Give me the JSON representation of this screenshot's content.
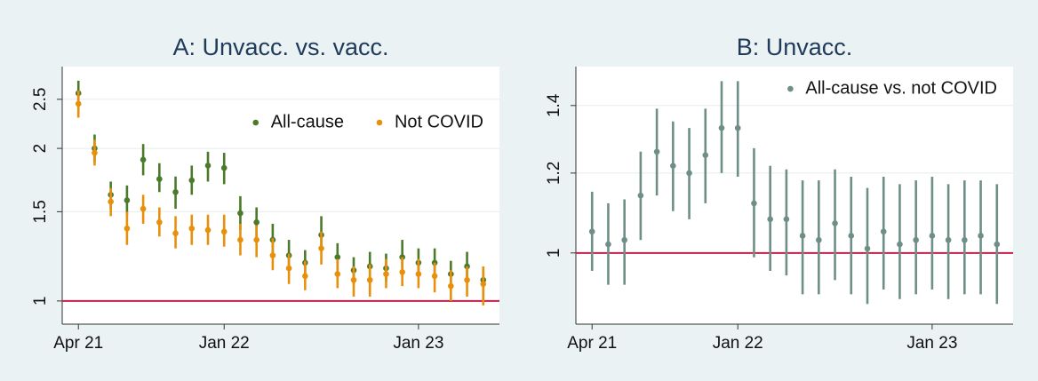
{
  "chart_data": [
    {
      "type": "errorbar",
      "title": "A: Unvacc. vs. vacc.",
      "log_y": true,
      "grid": true,
      "legend": "upper right",
      "x": [
        "2021-04",
        "2021-05",
        "2021-06",
        "2021-07",
        "2021-08",
        "2021-09",
        "2021-10",
        "2021-11",
        "2021-12",
        "2022-01",
        "2022-02",
        "2022-03",
        "2022-04",
        "2022-05",
        "2022-06",
        "2022-07",
        "2022-08",
        "2022-09",
        "2022-10",
        "2022-11",
        "2022-12",
        "2023-01",
        "2023-02",
        "2023-03",
        "2023-04",
        "2023-05"
      ],
      "xlim": [
        "2021-03",
        "2023-06"
      ],
      "xticks": [
        {
          "value": "2021-04",
          "label": "Apr 21"
        },
        {
          "value": "2022-01",
          "label": "Jan 22"
        },
        {
          "value": "2023-01",
          "label": "Jan 23"
        }
      ],
      "ylim": [
        0.9,
        2.9
      ],
      "yticks": [
        1,
        1.5,
        2,
        2.5
      ],
      "hline": {
        "value": 1,
        "color": "#c41e4a"
      },
      "series": [
        {
          "name": "All-cause",
          "color": "#4b7a2b",
          "values": [
            2.57,
            2.0,
            1.62,
            1.58,
            1.9,
            1.74,
            1.64,
            1.73,
            1.85,
            1.83,
            1.49,
            1.43,
            1.32,
            1.23,
            1.19,
            1.35,
            1.22,
            1.15,
            1.17,
            1.16,
            1.22,
            1.19,
            1.19,
            1.13,
            1.17,
            1.1
          ],
          "lower": [
            2.42,
            1.88,
            1.52,
            1.48,
            1.77,
            1.64,
            1.52,
            1.62,
            1.72,
            1.7,
            1.38,
            1.33,
            1.23,
            1.15,
            1.12,
            1.26,
            1.15,
            1.08,
            1.09,
            1.09,
            1.16,
            1.12,
            1.12,
            1.06,
            1.09,
            1.02
          ],
          "upper": [
            2.72,
            2.13,
            1.72,
            1.69,
            2.04,
            1.87,
            1.76,
            1.85,
            1.97,
            1.96,
            1.61,
            1.53,
            1.42,
            1.32,
            1.26,
            1.47,
            1.3,
            1.22,
            1.25,
            1.24,
            1.32,
            1.27,
            1.27,
            1.2,
            1.25,
            1.17
          ]
        },
        {
          "name": "Not COVID",
          "color": "#e8900c",
          "values": [
            2.45,
            1.96,
            1.57,
            1.39,
            1.52,
            1.43,
            1.36,
            1.39,
            1.38,
            1.37,
            1.32,
            1.32,
            1.23,
            1.16,
            1.12,
            1.27,
            1.13,
            1.1,
            1.1,
            1.13,
            1.14,
            1.13,
            1.12,
            1.07,
            1.1,
            1.08
          ],
          "lower": [
            2.3,
            1.85,
            1.47,
            1.29,
            1.42,
            1.34,
            1.27,
            1.29,
            1.29,
            1.28,
            1.23,
            1.22,
            1.15,
            1.08,
            1.05,
            1.18,
            1.06,
            1.02,
            1.02,
            1.06,
            1.07,
            1.06,
            1.04,
            1.0,
            1.02,
            0.98
          ],
          "upper": [
            2.6,
            2.08,
            1.67,
            1.5,
            1.62,
            1.53,
            1.47,
            1.48,
            1.48,
            1.48,
            1.42,
            1.41,
            1.33,
            1.24,
            1.2,
            1.37,
            1.21,
            1.17,
            1.18,
            1.21,
            1.22,
            1.21,
            1.19,
            1.15,
            1.17,
            1.17
          ]
        }
      ]
    },
    {
      "type": "errorbar",
      "title": "B: Unvacc.",
      "log_y": true,
      "grid": true,
      "legend": "upper right",
      "x": [
        "2021-04",
        "2021-05",
        "2021-06",
        "2021-07",
        "2021-08",
        "2021-09",
        "2021-10",
        "2021-11",
        "2021-12",
        "2022-01",
        "2022-02",
        "2022-03",
        "2022-04",
        "2022-05",
        "2022-06",
        "2022-07",
        "2022-08",
        "2022-09",
        "2022-10",
        "2022-11",
        "2022-12",
        "2023-01",
        "2023-02",
        "2023-03",
        "2023-04",
        "2023-05"
      ],
      "xlim": [
        "2021-03",
        "2023-06"
      ],
      "xticks": [
        {
          "value": "2021-04",
          "label": "Apr 21"
        },
        {
          "value": "2022-01",
          "label": "Jan 22"
        },
        {
          "value": "2023-01",
          "label": "Jan 23"
        }
      ],
      "ylim": [
        0.85,
        1.53
      ],
      "yticks": [
        1,
        1.2,
        1.4
      ],
      "hline": {
        "value": 1,
        "color": "#c41e4a"
      },
      "series": [
        {
          "name": "All-cause vs. not COVID",
          "color": "#6e8f87",
          "values": [
            1.05,
            1.02,
            1.03,
            1.14,
            1.26,
            1.22,
            1.2,
            1.25,
            1.33,
            1.33,
            1.12,
            1.08,
            1.08,
            1.04,
            1.03,
            1.07,
            1.04,
            1.01,
            1.05,
            1.02,
            1.03,
            1.04,
            1.03,
            1.03,
            1.04,
            1.02
          ],
          "lower": [
            0.96,
            0.93,
            0.93,
            1.03,
            1.14,
            1.1,
            1.08,
            1.12,
            1.2,
            1.19,
            0.99,
            0.96,
            0.95,
            0.91,
            0.91,
            0.94,
            0.91,
            0.89,
            0.92,
            0.9,
            0.91,
            0.92,
            0.9,
            0.91,
            0.91,
            0.89
          ],
          "upper": [
            1.15,
            1.12,
            1.13,
            1.26,
            1.39,
            1.35,
            1.33,
            1.39,
            1.48,
            1.48,
            1.27,
            1.22,
            1.21,
            1.18,
            1.18,
            1.21,
            1.19,
            1.16,
            1.19,
            1.17,
            1.18,
            1.19,
            1.17,
            1.18,
            1.18,
            1.17
          ]
        }
      ]
    }
  ]
}
